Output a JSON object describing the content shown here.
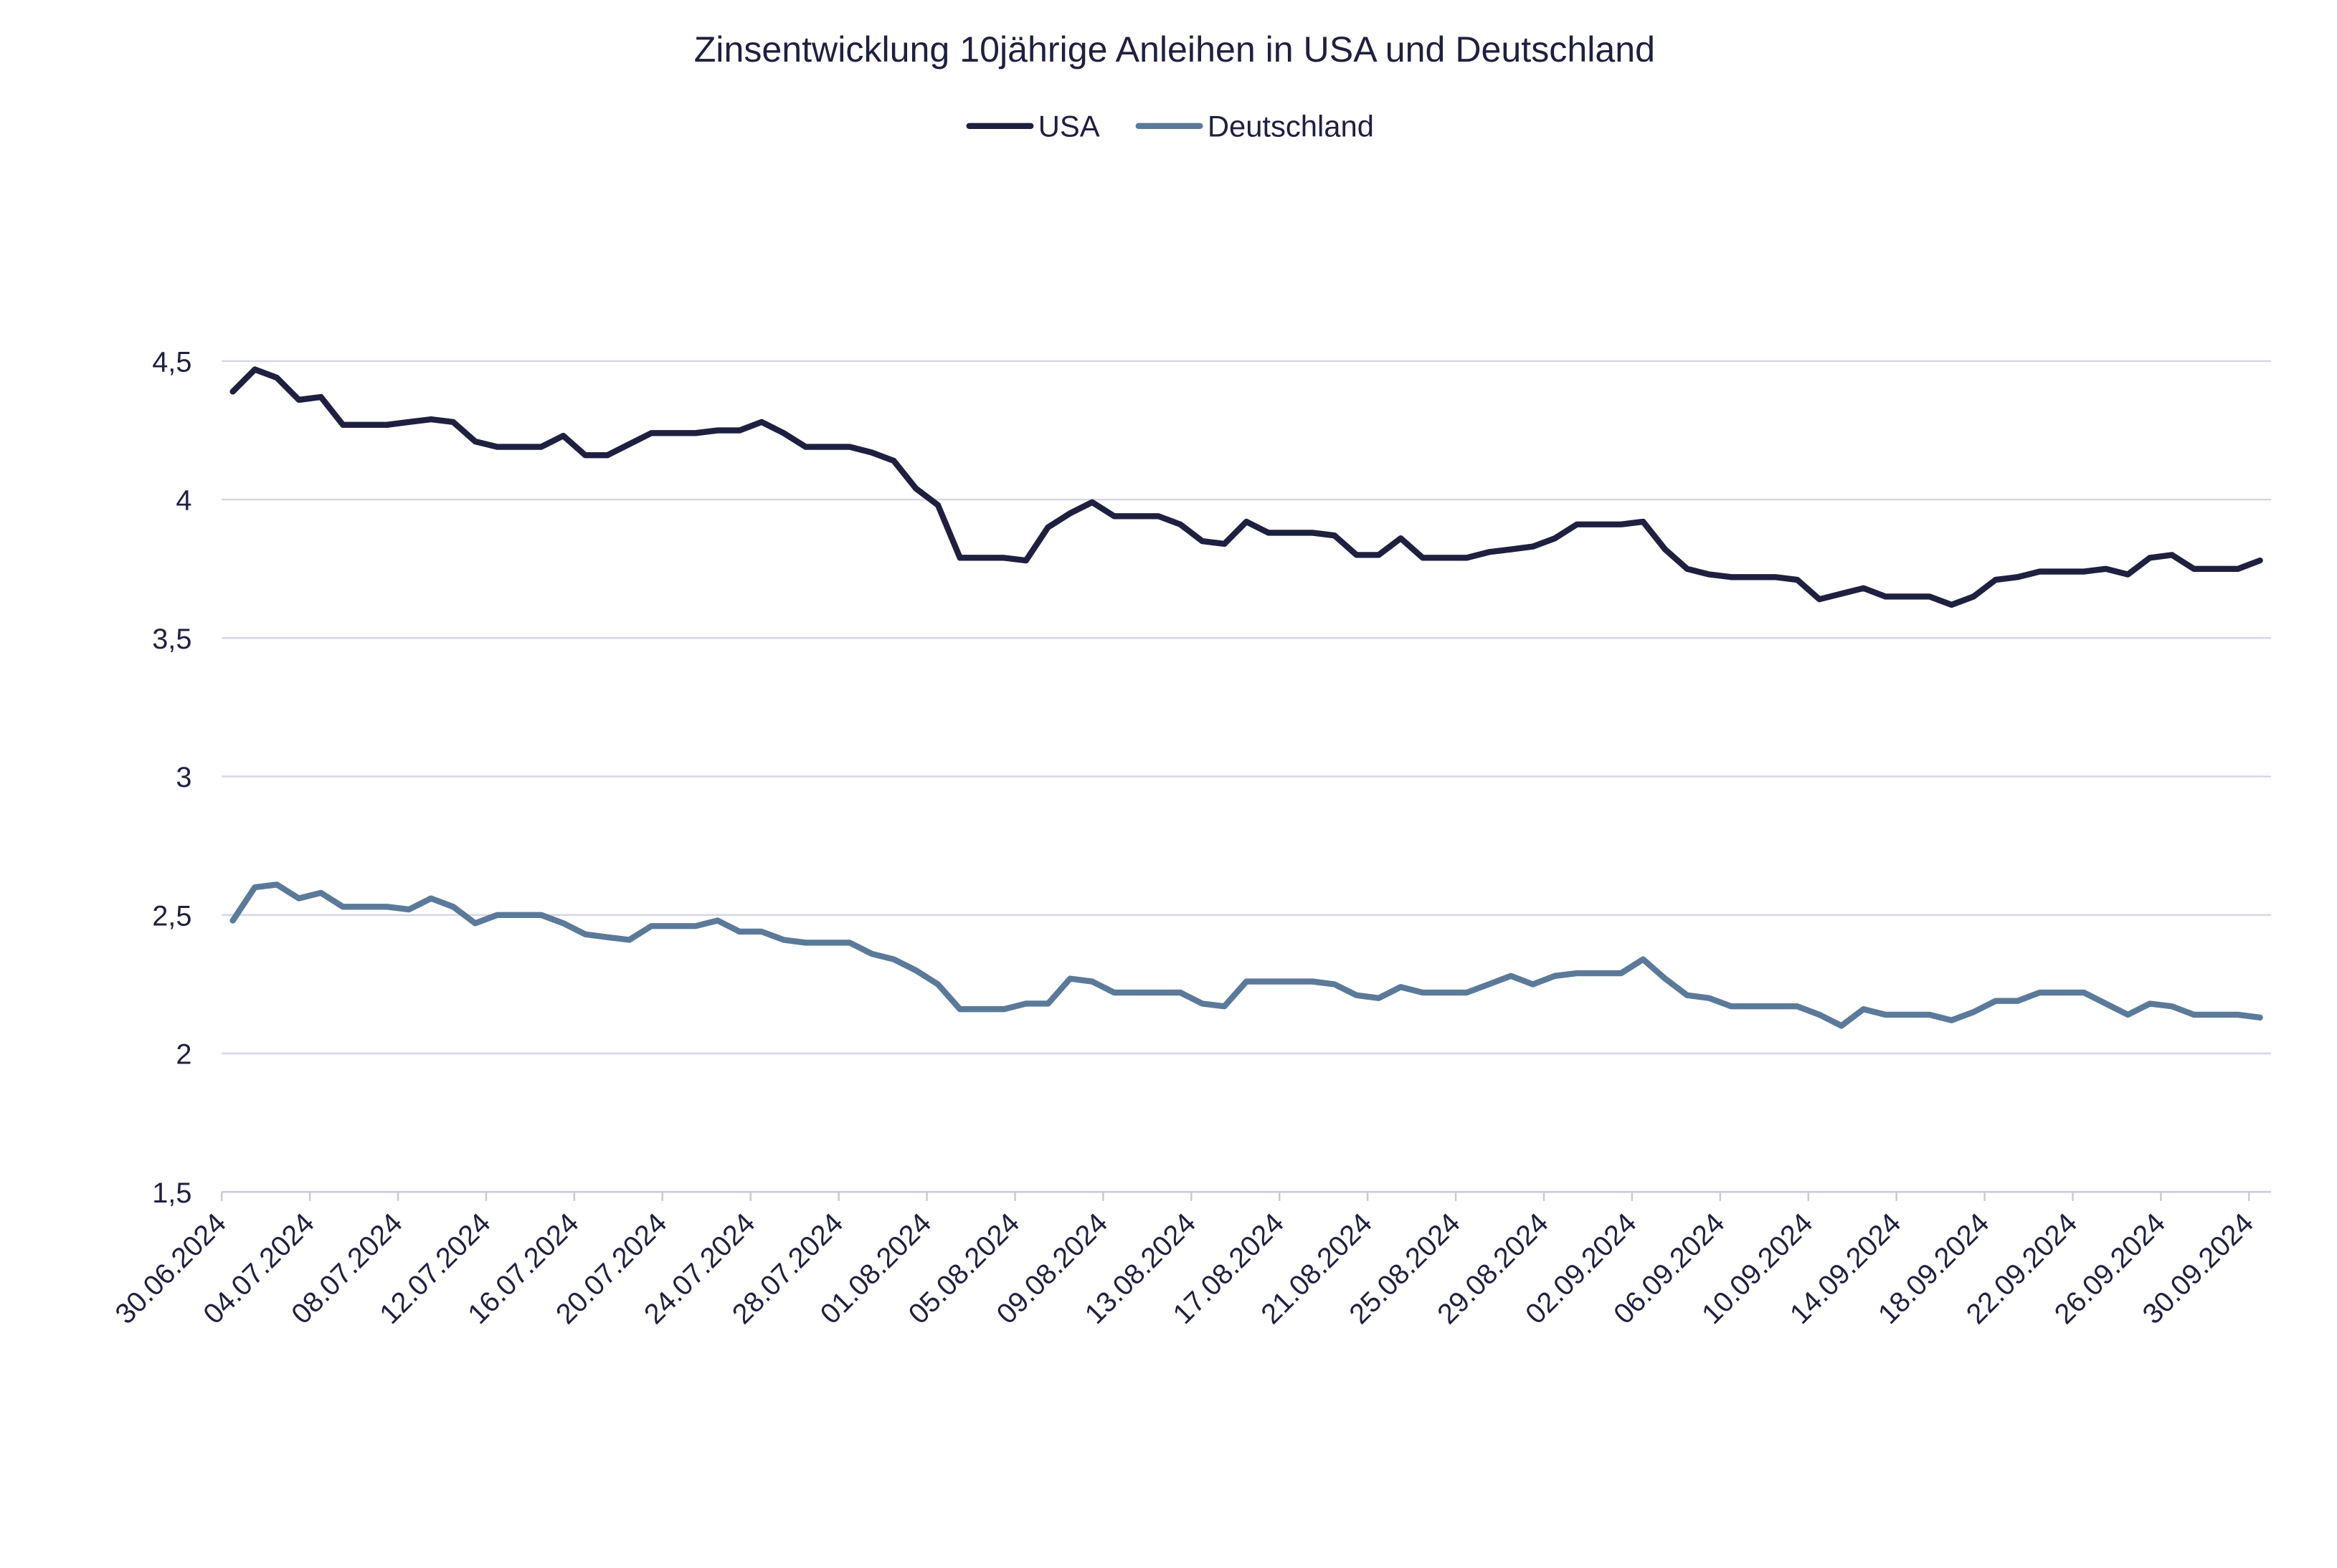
{
  "chart_data": {
    "type": "line",
    "title": "Zinsentwicklung 10jährige Anleihen in USA und Deutschland",
    "xlabel": "",
    "ylabel": "",
    "ylim": [
      1.5,
      4.5
    ],
    "yticks": [
      "1,5",
      "2",
      "2,5",
      "3",
      "3,5",
      "4",
      "4,5"
    ],
    "ytick_values": [
      1.5,
      2,
      2.5,
      3,
      3.5,
      4,
      4.5
    ],
    "xticks": [
      "30.06.2024",
      "04.07.2024",
      "08.07.2024",
      "12.07.2024",
      "16.07.2024",
      "20.07.2024",
      "24.07.2024",
      "28.07.2024",
      "01.08.2024",
      "05.08.2024",
      "09.08.2024",
      "13.08.2024",
      "17.08.2024",
      "21.08.2024",
      "25.08.2024",
      "29.08.2024",
      "02.09.2024",
      "06.09.2024",
      "10.09.2024",
      "14.09.2024",
      "18.09.2024",
      "22.09.2024",
      "26.09.2024",
      "30.09.2024"
    ],
    "grid": true,
    "legend_position": "top",
    "x": [
      "30.06.2024",
      "01.07.2024",
      "02.07.2024",
      "03.07.2024",
      "04.07.2024",
      "05.07.2024",
      "06.07.2024",
      "07.07.2024",
      "08.07.2024",
      "09.07.2024",
      "10.07.2024",
      "11.07.2024",
      "12.07.2024",
      "13.07.2024",
      "14.07.2024",
      "15.07.2024",
      "16.07.2024",
      "17.07.2024",
      "18.07.2024",
      "19.07.2024",
      "20.07.2024",
      "21.07.2024",
      "22.07.2024",
      "23.07.2024",
      "24.07.2024",
      "25.07.2024",
      "26.07.2024",
      "27.07.2024",
      "28.07.2024",
      "29.07.2024",
      "30.07.2024",
      "31.07.2024",
      "01.08.2024",
      "02.08.2024",
      "03.08.2024",
      "04.08.2024",
      "05.08.2024",
      "06.08.2024",
      "07.08.2024",
      "08.08.2024",
      "09.08.2024",
      "10.08.2024",
      "11.08.2024",
      "12.08.2024",
      "13.08.2024",
      "14.08.2024",
      "15.08.2024",
      "16.08.2024",
      "17.08.2024",
      "18.08.2024",
      "19.08.2024",
      "20.08.2024",
      "21.08.2024",
      "22.08.2024",
      "23.08.2024",
      "24.08.2024",
      "25.08.2024",
      "26.08.2024",
      "27.08.2024",
      "28.08.2024",
      "29.08.2024",
      "30.08.2024",
      "31.08.2024",
      "01.09.2024",
      "02.09.2024",
      "03.09.2024",
      "04.09.2024",
      "05.09.2024",
      "06.09.2024",
      "07.09.2024",
      "08.09.2024",
      "09.09.2024",
      "10.09.2024",
      "11.09.2024",
      "12.09.2024",
      "13.09.2024",
      "14.09.2024",
      "15.09.2024",
      "16.09.2024",
      "17.09.2024",
      "18.09.2024",
      "19.09.2024",
      "20.09.2024",
      "21.09.2024",
      "22.09.2024",
      "23.09.2024",
      "24.09.2024",
      "25.09.2024",
      "26.09.2024",
      "27.09.2024",
      "28.09.2024",
      "29.09.2024",
      "30.09.2024"
    ],
    "series": [
      {
        "name": "USA",
        "color": "#1f2040",
        "values": [
          4.39,
          4.47,
          4.44,
          4.36,
          4.37,
          4.27,
          4.27,
          4.27,
          4.28,
          4.29,
          4.28,
          4.21,
          4.19,
          4.19,
          4.19,
          4.23,
          4.16,
          4.16,
          4.2,
          4.24,
          4.24,
          4.24,
          4.25,
          4.25,
          4.28,
          4.24,
          4.19,
          4.19,
          4.19,
          4.17,
          4.14,
          4.04,
          3.98,
          3.79,
          3.79,
          3.79,
          3.78,
          3.9,
          3.95,
          3.99,
          3.94,
          3.94,
          3.94,
          3.91,
          3.85,
          3.84,
          3.92,
          3.88,
          3.88,
          3.88,
          3.87,
          3.8,
          3.8,
          3.86,
          3.79,
          3.79,
          3.79,
          3.81,
          3.82,
          3.83,
          3.86,
          3.91,
          3.91,
          3.91,
          3.92,
          3.82,
          3.75,
          3.73,
          3.72,
          3.72,
          3.72,
          3.71,
          3.64,
          3.66,
          3.68,
          3.65,
          3.65,
          3.65,
          3.62,
          3.65,
          3.71,
          3.72,
          3.74,
          3.74,
          3.74,
          3.75,
          3.73,
          3.79,
          3.8,
          3.75,
          3.75,
          3.75,
          3.78
        ]
      },
      {
        "name": "Deutschland",
        "color": "#5b7a9a",
        "values": [
          2.48,
          2.6,
          2.61,
          2.56,
          2.58,
          2.53,
          2.53,
          2.53,
          2.52,
          2.56,
          2.53,
          2.47,
          2.5,
          2.5,
          2.5,
          2.47,
          2.43,
          2.42,
          2.41,
          2.46,
          2.46,
          2.46,
          2.48,
          2.44,
          2.44,
          2.41,
          2.4,
          2.4,
          2.4,
          2.36,
          2.34,
          2.3,
          2.25,
          2.16,
          2.16,
          2.16,
          2.18,
          2.18,
          2.27,
          2.26,
          2.22,
          2.22,
          2.22,
          2.22,
          2.18,
          2.17,
          2.26,
          2.26,
          2.26,
          2.26,
          2.25,
          2.21,
          2.2,
          2.24,
          2.22,
          2.22,
          2.22,
          2.25,
          2.28,
          2.25,
          2.28,
          2.29,
          2.29,
          2.29,
          2.34,
          2.27,
          2.21,
          2.2,
          2.17,
          2.17,
          2.17,
          2.17,
          2.14,
          2.1,
          2.16,
          2.14,
          2.14,
          2.14,
          2.12,
          2.15,
          2.19,
          2.19,
          2.22,
          2.22,
          2.22,
          2.18,
          2.14,
          2.18,
          2.17,
          2.14,
          2.14,
          2.14,
          2.13
        ]
      }
    ]
  }
}
